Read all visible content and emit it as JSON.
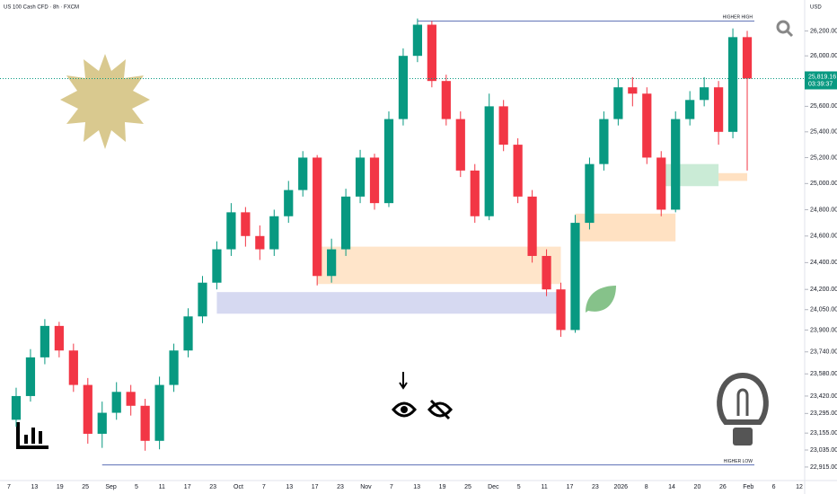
{
  "chart_data": {
    "type": "candlestick",
    "title": "US 100 Cash CFD · 8h · FXCM",
    "currency": "USD",
    "log_scale": true,
    "grid": false,
    "up_color": "#089981",
    "down_color": "#f23645",
    "ylim": [
      22820,
      26450
    ],
    "yticks": [
      {
        "value": 26200,
        "label": "26,200.00"
      },
      {
        "value": 26000,
        "label": "26,000.00"
      },
      {
        "value": 25600,
        "label": "25,600.00"
      },
      {
        "value": 25400,
        "label": "25,400.00"
      },
      {
        "value": 25200,
        "label": "25,200.00"
      },
      {
        "value": 25000,
        "label": "25,000.00"
      },
      {
        "value": 24800,
        "label": "24,800.00"
      },
      {
        "value": 24600,
        "label": "24,600.00"
      },
      {
        "value": 24400,
        "label": "24,400.00"
      },
      {
        "value": 24200,
        "label": "24,200.00"
      },
      {
        "value": 24050,
        "label": "24,050.00"
      },
      {
        "value": 23900,
        "label": "23,900.00"
      },
      {
        "value": 23740,
        "label": "23,740.00"
      },
      {
        "value": 23580,
        "label": "23,580.00"
      },
      {
        "value": 23420,
        "label": "23,420.00"
      },
      {
        "value": 23295,
        "label": "23,295.00"
      },
      {
        "value": 23155,
        "label": "23,155.00"
      },
      {
        "value": 23035,
        "label": "23,035.00"
      },
      {
        "value": 22915,
        "label": "22,915.00"
      }
    ],
    "x_ticks": [
      "7",
      "13",
      "19",
      "25",
      "Sep",
      "5",
      "11",
      "17",
      "23",
      "Oct",
      "7",
      "13",
      "17",
      "23",
      "Nov",
      "7",
      "13",
      "19",
      "25",
      "Dec",
      "5",
      "11",
      "17",
      "23",
      "2026",
      "8",
      "14",
      "20",
      "26",
      "Feb",
      "6",
      "12"
    ],
    "open": [
      23250,
      23420,
      23700,
      23930,
      23750,
      23500,
      23150,
      23300,
      23450,
      23350,
      23100,
      23500,
      23750,
      24000,
      24250,
      24500,
      24780,
      24600,
      24500,
      24750,
      24950,
      25200,
      24300,
      24500,
      24900,
      25200,
      24850,
      25500,
      26000,
      26250,
      25800,
      25500,
      25100,
      24750,
      25600,
      25300,
      24900,
      24450,
      24200,
      23900,
      24700,
      25150,
      25500,
      25750,
      25700,
      25200,
      24800,
      25500,
      25650,
      25750,
      25400,
      26150
    ],
    "high": [
      23480,
      23760,
      23980,
      23960,
      23800,
      23550,
      23380,
      23520,
      23500,
      23400,
      23560,
      23800,
      24060,
      24300,
      24560,
      24850,
      24820,
      24680,
      24800,
      25020,
      25250,
      25220,
      24580,
      24960,
      25260,
      25230,
      25560,
      26060,
      26300,
      26280,
      25850,
      25560,
      25150,
      25700,
      25650,
      25350,
      24950,
      24500,
      24250,
      24760,
      25200,
      25560,
      25820,
      25830,
      25750,
      25250,
      25560,
      25720,
      25830,
      25800,
      26220,
      26200
    ],
    "low": [
      23200,
      23380,
      23650,
      23700,
      23450,
      23080,
      23050,
      23250,
      23280,
      23030,
      23040,
      23450,
      23700,
      23950,
      24200,
      24450,
      24520,
      24420,
      24450,
      24700,
      24900,
      24230,
      24250,
      24450,
      24850,
      24800,
      24820,
      25450,
      25950,
      25750,
      25450,
      25050,
      24700,
      24720,
      25250,
      24850,
      24400,
      24150,
      23850,
      23880,
      24650,
      25100,
      25450,
      25600,
      25150,
      24750,
      24780,
      25450,
      25600,
      25300,
      25350,
      25100
    ],
    "close": [
      23420,
      23700,
      23930,
      23750,
      23500,
      23150,
      23300,
      23450,
      23350,
      23100,
      23500,
      23750,
      24000,
      24250,
      24500,
      24780,
      24600,
      24500,
      24750,
      24950,
      25200,
      24300,
      24500,
      24900,
      25200,
      24850,
      25500,
      26000,
      26250,
      25800,
      25500,
      25100,
      24750,
      25600,
      25300,
      24900,
      24450,
      24200,
      23900,
      24700,
      25150,
      25500,
      25750,
      25700,
      25200,
      24800,
      25500,
      25650,
      25750,
      25400,
      26150,
      25819.16
    ],
    "last_price": {
      "value": 25819.16,
      "label": "25,819.16"
    },
    "countdown": "03:39:37",
    "zones": [
      {
        "top": 24180,
        "bottom": 24020,
        "from": 14,
        "to": 38,
        "color": "rgba(120,130,210,0.3)"
      },
      {
        "top": 24520,
        "bottom": 24240,
        "from": 21,
        "to": 38,
        "color": "rgba(255,170,80,0.3)"
      },
      {
        "top": 24770,
        "bottom": 24560,
        "from": 39,
        "to": 46,
        "color": "rgba(255,170,80,0.35)"
      },
      {
        "top": 25150,
        "bottom": 24980,
        "from": 45,
        "to": 49,
        "color": "rgba(80,190,120,0.3)"
      },
      {
        "top": 25080,
        "bottom": 25020,
        "from": 49,
        "to": 51,
        "color": "rgba(255,170,80,0.35)"
      }
    ],
    "levels": [
      {
        "value": 26280,
        "from": 28,
        "label": "HIGHER HIGH"
      },
      {
        "value": 22930,
        "from": 6,
        "label": "HIGHER LOW"
      }
    ]
  }
}
